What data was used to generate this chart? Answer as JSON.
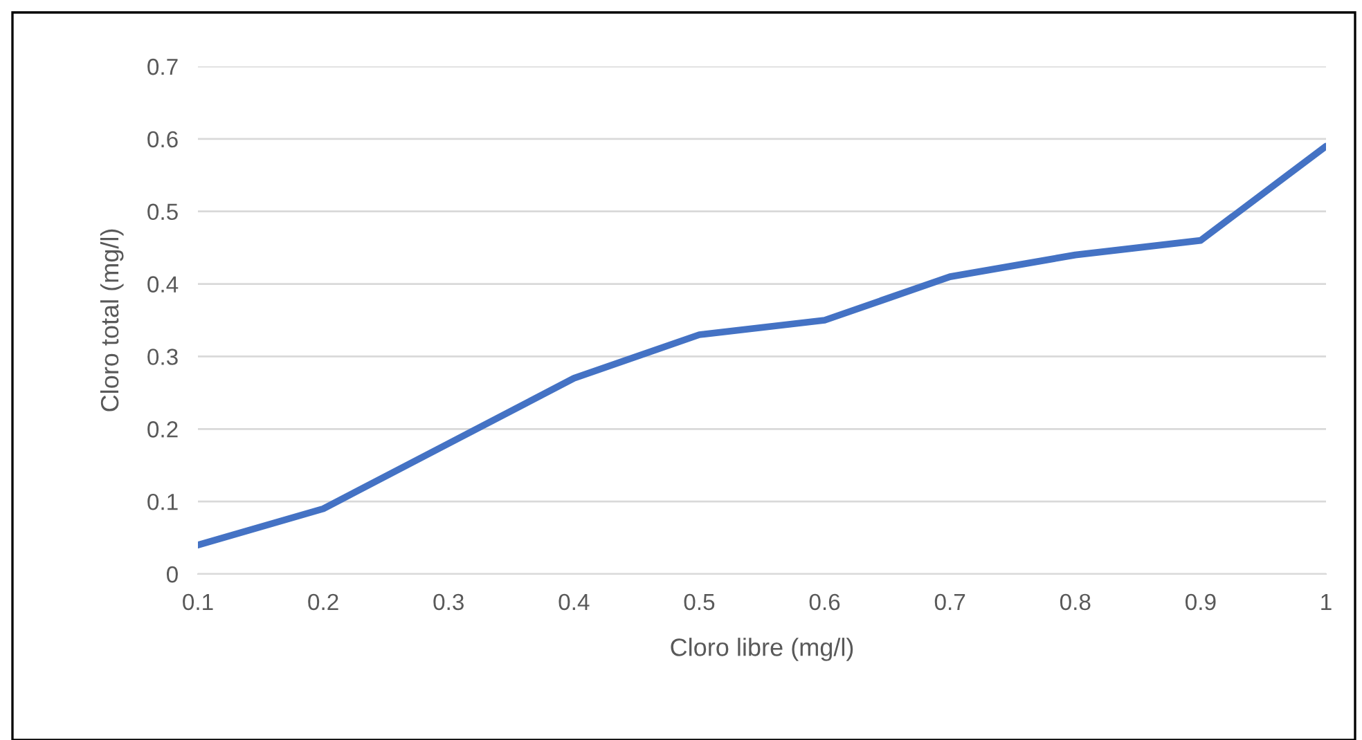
{
  "chart_data": {
    "type": "line",
    "xlabel": "Cloro libre (mg/l)",
    "ylabel": "Cloro total (mg/l)",
    "x": [
      0.1,
      0.2,
      0.3,
      0.4,
      0.5,
      0.6,
      0.7,
      0.8,
      0.9,
      1
    ],
    "series": [
      {
        "color": "#4472c4",
        "values": [
          0.04,
          0.09,
          0.18,
          0.27,
          0.33,
          0.35,
          0.41,
          0.44,
          0.46,
          0.59
        ]
      }
    ],
    "xlim": [
      0.1,
      1
    ],
    "xticks": [
      0.1,
      0.2,
      0.3,
      0.4,
      0.5,
      0.6,
      0.7,
      0.8,
      0.9,
      1
    ],
    "ylim": [
      0,
      0.7
    ],
    "yticks": [
      0,
      0.1,
      0.2,
      0.3,
      0.4,
      0.5,
      0.6,
      0.7
    ],
    "grid": "y",
    "marker": "none",
    "line_style": "solid"
  }
}
